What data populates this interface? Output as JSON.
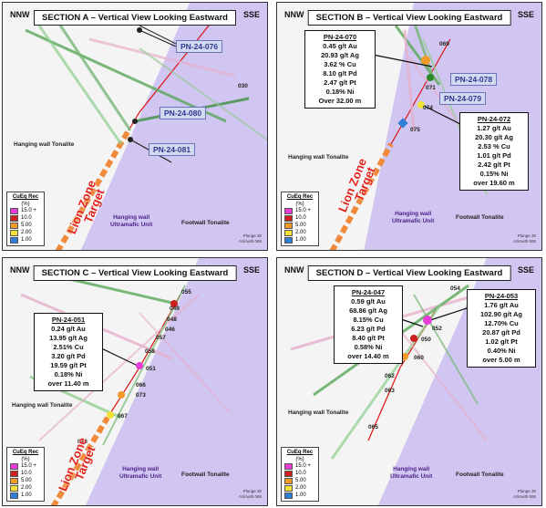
{
  "directions": {
    "left": "NNW",
    "right": "SSE"
  },
  "legend": {
    "title": "CuEq Rec",
    "unit": "(%)",
    "items": [
      {
        "label": "15.0 +",
        "color": "#e83cd6"
      },
      {
        "label": "10.0",
        "color": "#cc1f1f"
      },
      {
        "label": "5.00",
        "color": "#f19a2a"
      },
      {
        "label": "2.00",
        "color": "#f2e23a"
      },
      {
        "label": "1.00",
        "color": "#2f7fd9"
      }
    ]
  },
  "geology": {
    "hanging_wall_tonalite": "Hanging wall Tonalite",
    "footwall_tonalite": "Footwall Tonalite",
    "ultramafic": "Hanging wall\nUltramafic Unit",
    "target_line1": "Lion Zone",
    "target_line2": "Target"
  },
  "scale_note": "Plunge 30\nAzimuth 065",
  "panels": [
    {
      "title": "SECTION A – Vertical View Looking Eastward",
      "hole_labels": [
        "PN-24-076",
        "PN-24-080",
        "PN-24-081"
      ],
      "small_labels": [
        "030"
      ],
      "callouts": []
    },
    {
      "title": "SECTION B – Vertical View Looking Eastward",
      "hole_labels": [
        "PN-24-078",
        "PN-24-079"
      ],
      "small_labels": [
        "069",
        "071",
        "074",
        "075"
      ],
      "callouts": [
        {
          "hole": "PN-24-070",
          "lines": [
            "0.45 g/t Au",
            "20.93 g/t Ag",
            "3.62 % Cu",
            "8.10 g/t Pd",
            "2.47 g/t Pt",
            "0.18% Ni",
            "Over 32.00 m"
          ]
        },
        {
          "hole": "PN-24-072",
          "lines": [
            "1.27 g/t Au",
            "20.30 g/t Ag",
            "2.53 % Cu",
            "1.01 g/t Pd",
            "2.42 g/t Pt",
            "0.15% Ni",
            "over 19.60 m"
          ]
        }
      ]
    },
    {
      "title": "SECTION C – Vertical View Looking Eastward",
      "hole_labels": [],
      "small_labels": [
        "055",
        "049",
        "048",
        "046",
        "057",
        "058",
        "051",
        "066",
        "073",
        "067",
        "068"
      ],
      "callouts": [
        {
          "hole": "PN-24-051",
          "lines": [
            "0.24 g/t Au",
            "13.95 g/t Ag",
            "2.51% Cu",
            "3.20 g/t Pd",
            "19.59 g/t Pt",
            "0.18% Ni",
            "over 11.40 m"
          ]
        }
      ]
    },
    {
      "title": "SECTION D – Vertical View Looking Eastward",
      "hole_labels": [],
      "small_labels": [
        "054",
        "052",
        "050",
        "060",
        "062",
        "063",
        "065"
      ],
      "callouts": [
        {
          "hole": "PN-24-047",
          "lines": [
            "0.59 g/t Au",
            "68.86 g/t Ag",
            "8.15% Cu",
            "6.23 g/t Pd",
            "8.40 g/t Pt",
            "0.58% Ni",
            "over 14.40 m"
          ]
        },
        {
          "hole": "PN-24-053",
          "lines": [
            "1.76 g/t Au",
            "102.90 g/t Ag",
            "12.70% Cu",
            "20.87 g/t Pd",
            "1.02 g/t Pt",
            "0.40% Ni",
            "over 5.00 m"
          ]
        }
      ]
    }
  ]
}
